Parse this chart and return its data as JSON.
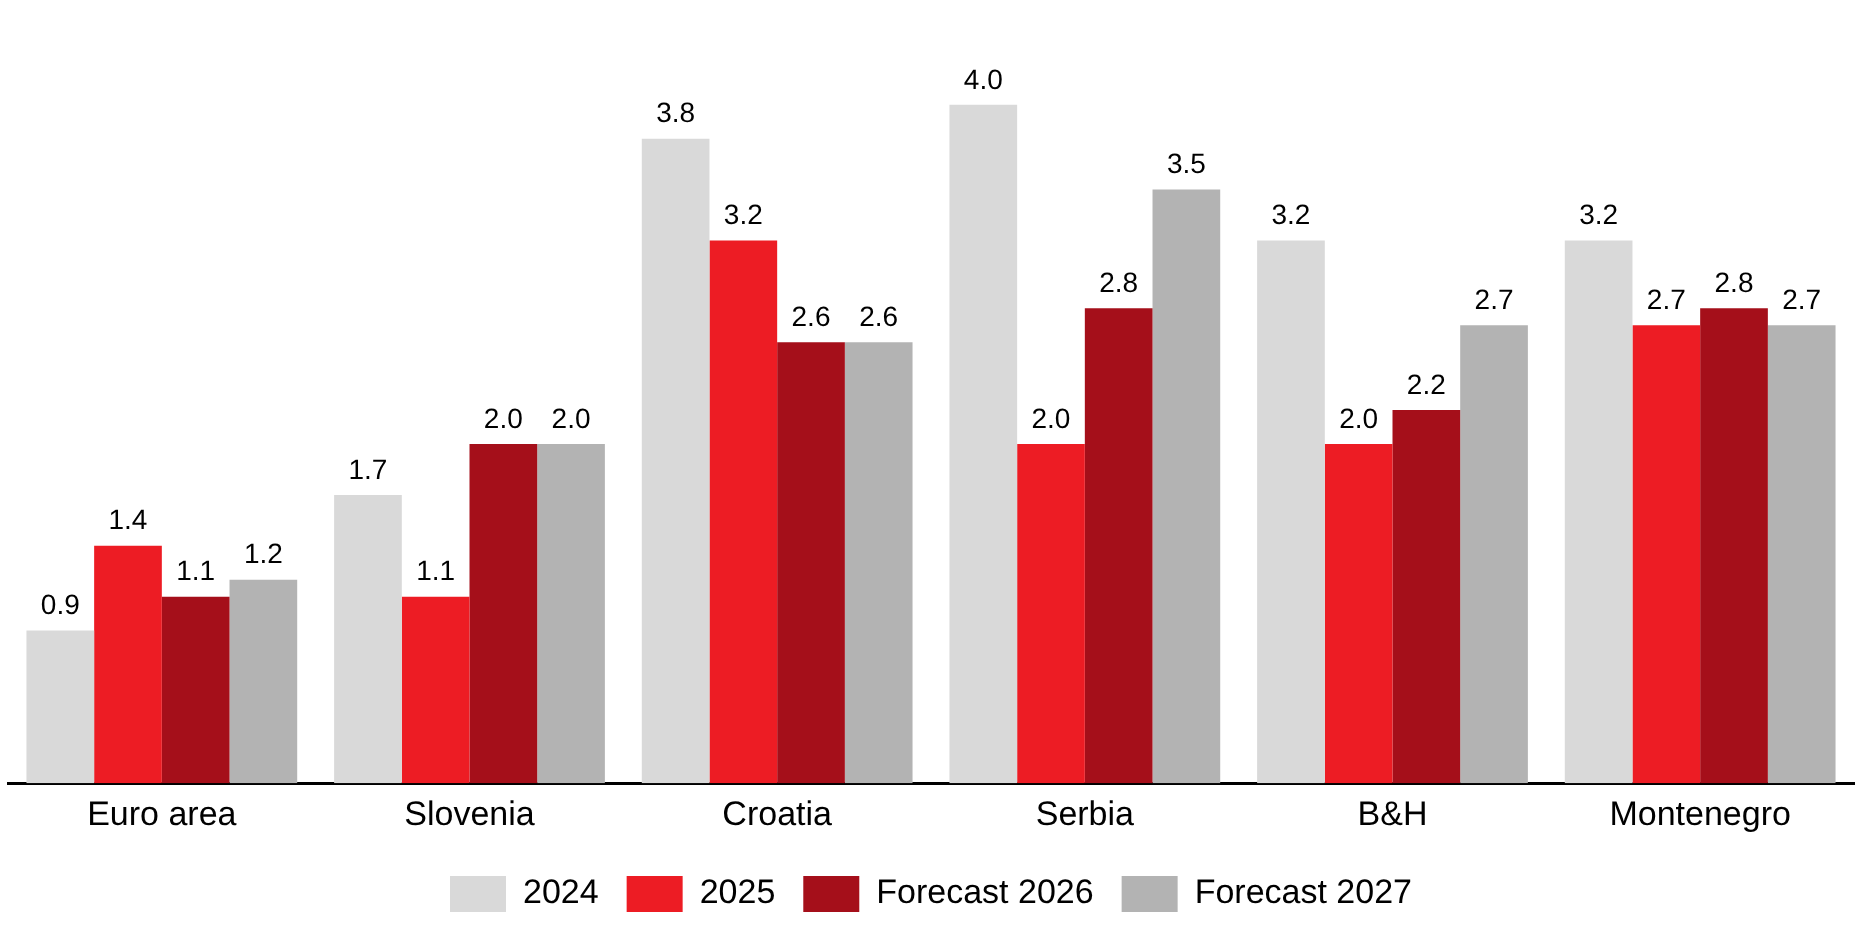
{
  "chart_data": {
    "type": "bar",
    "categories": [
      "Euro area",
      "Slovenia",
      "Croatia",
      "Serbia",
      "B&H",
      "Montenegro"
    ],
    "series": [
      {
        "name": "2024",
        "color": "#d9d9d9",
        "values": [
          0.9,
          1.7,
          3.8,
          4.0,
          3.2,
          3.2
        ],
        "value_labels": [
          "0.9",
          "1.7",
          "3.8",
          "4.0",
          "3.2",
          "3.2"
        ]
      },
      {
        "name": "2025",
        "color": "#ed1c24",
        "values": [
          1.4,
          1.1,
          3.2,
          2.0,
          2.0,
          2.7
        ],
        "value_labels": [
          "1.4",
          "1.1",
          "3.2",
          "2.0",
          "2.0",
          "2.7"
        ]
      },
      {
        "name": "Forecast 2026",
        "color": "#a50f1a",
        "values": [
          1.1,
          2.0,
          2.6,
          2.8,
          2.2,
          2.8
        ],
        "value_labels": [
          "1.1",
          "2.0",
          "2.6",
          "2.8",
          "2.2",
          "2.8"
        ]
      },
      {
        "name": "Forecast 2027",
        "color": "#b3b3b3",
        "values": [
          1.2,
          2.0,
          2.6,
          3.5,
          2.7,
          2.7
        ],
        "value_labels": [
          "1.2",
          "2.0",
          "2.6",
          "3.5",
          "2.7",
          "2.7"
        ]
      }
    ],
    "legend": "bottom",
    "grid": false
  }
}
